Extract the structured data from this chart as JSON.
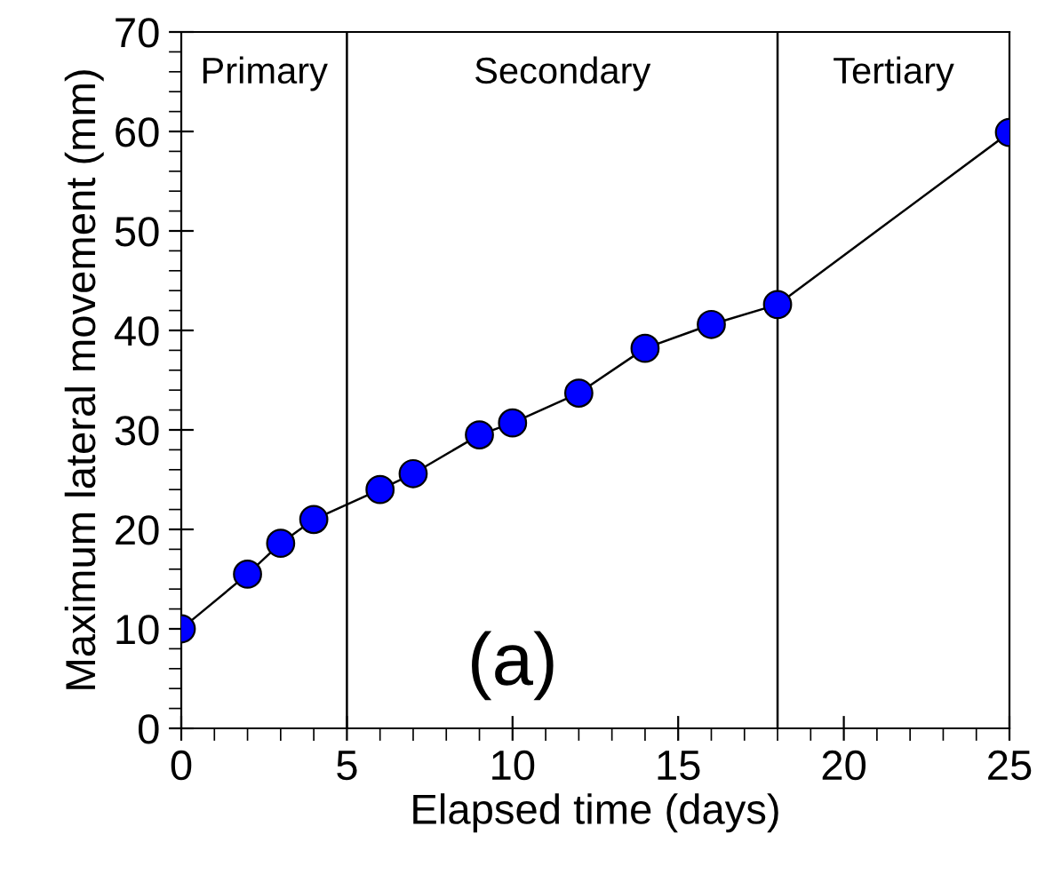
{
  "chart_data": {
    "type": "line",
    "xlabel": "Elapsed time (days)",
    "ylabel": "Maximum lateral movement (mm)",
    "x": [
      0,
      2,
      3,
      4,
      6,
      7,
      9,
      10,
      12,
      14,
      16,
      18,
      25
    ],
    "series": [
      {
        "color": "#0000ff",
        "values": [
          10,
          15.5,
          18.6,
          21,
          24,
          25.6,
          29.5,
          30.7,
          33.7,
          38.2,
          40.6,
          42.6,
          59.9
        ]
      }
    ],
    "xlim": [
      0,
      25
    ],
    "ylim": [
      0,
      70
    ],
    "xticks": [
      0,
      5,
      10,
      15,
      20,
      25
    ],
    "yticks": [
      0,
      10,
      20,
      30,
      40,
      50,
      60,
      70
    ],
    "marker": "circle",
    "line_style": "solid",
    "grid": false,
    "legend": false,
    "ref_lines": [
      {
        "axis": "x",
        "value": 5,
        "color": "#000000"
      },
      {
        "axis": "x",
        "value": 18,
        "color": "#000000"
      }
    ],
    "annotations": [
      "Primary",
      "Secondary",
      "Tertiary",
      "(a)"
    ]
  }
}
